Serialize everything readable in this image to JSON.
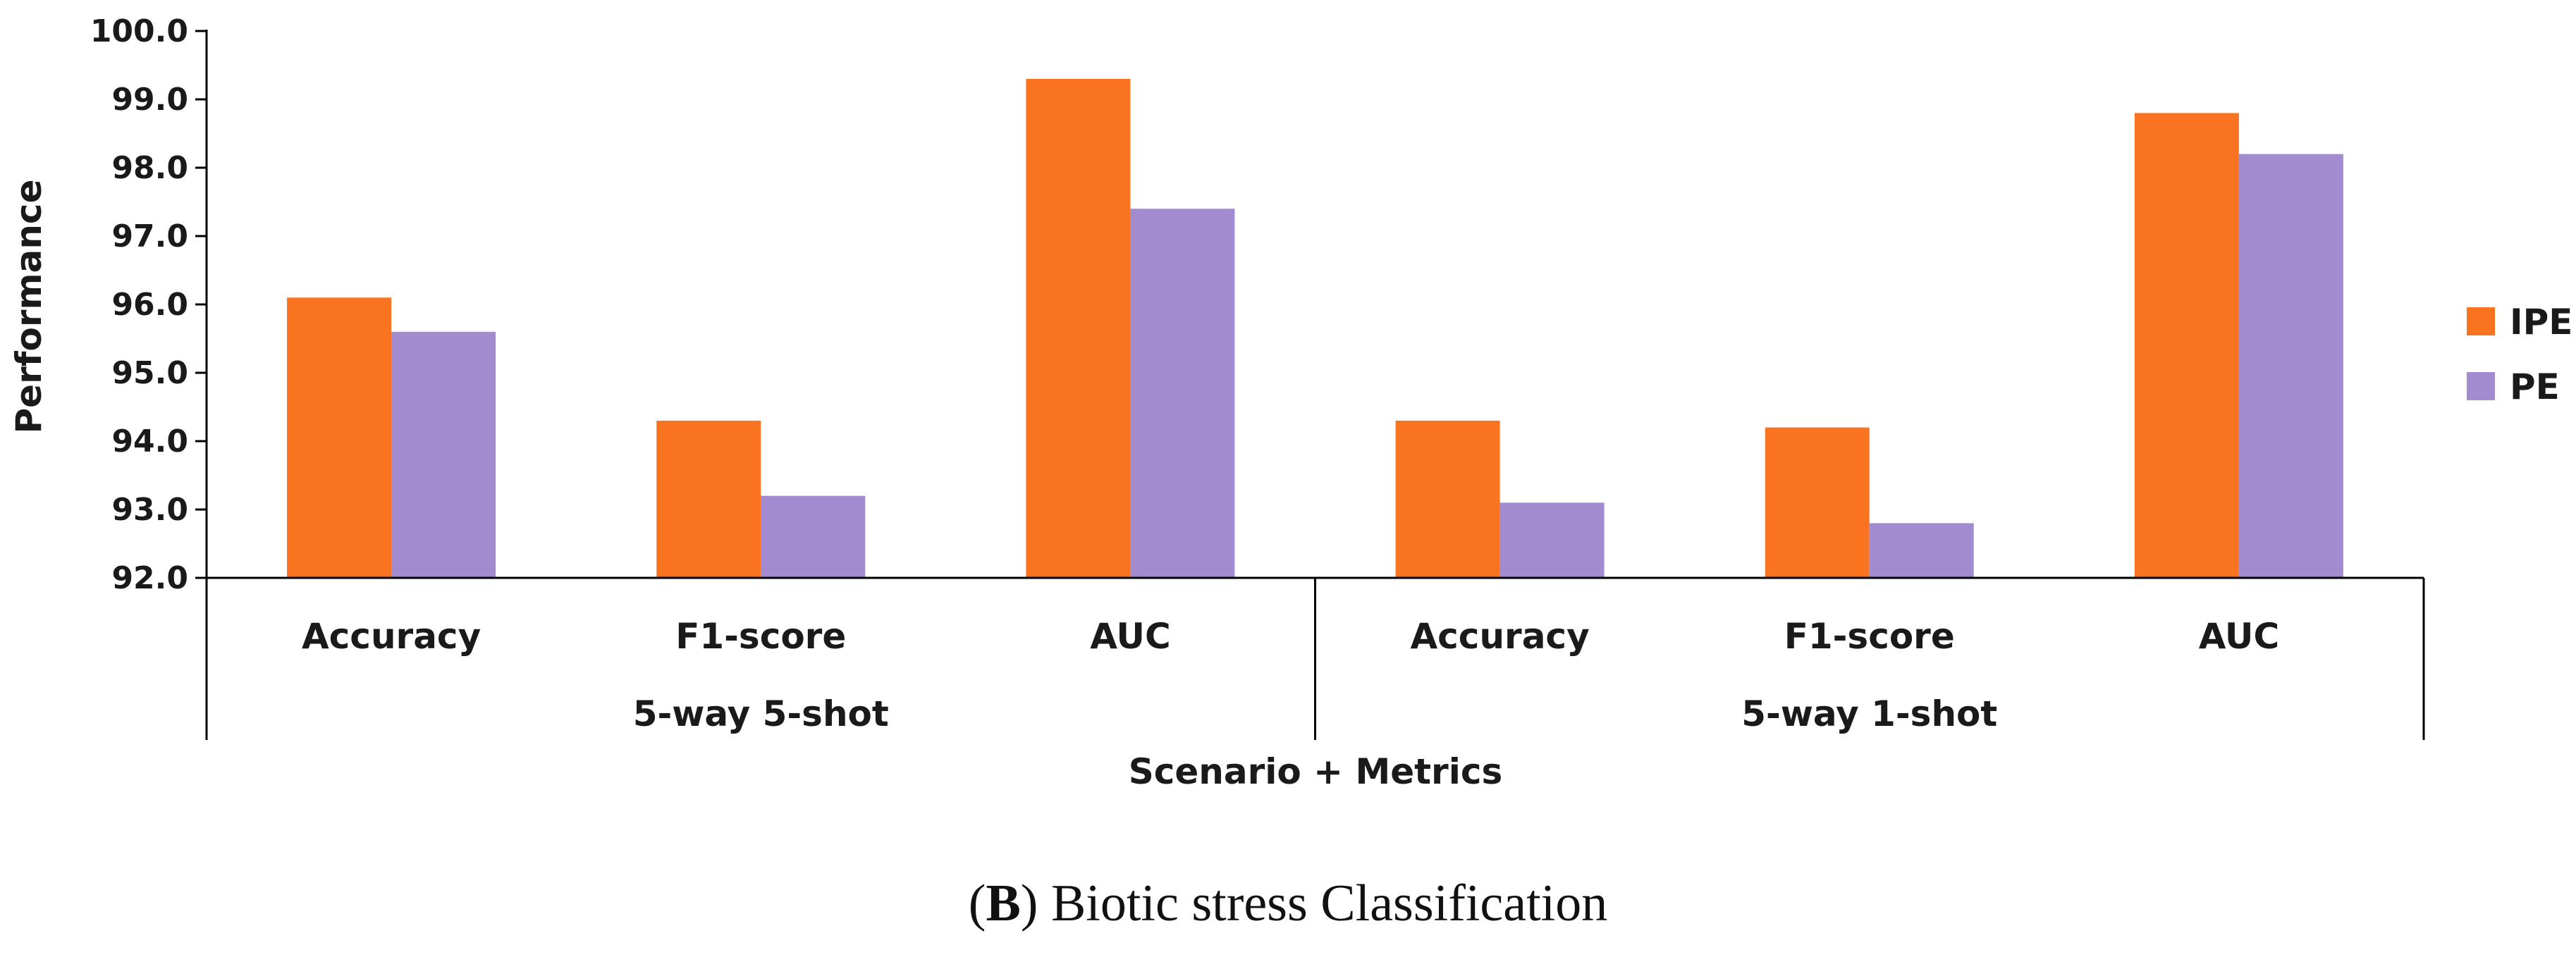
{
  "chart_data": {
    "type": "bar",
    "ylabel": "Performance",
    "xlabel": "Scenario + Metrics",
    "ylim": [
      92.0,
      100.0
    ],
    "yticks": [
      "92.0",
      "93.0",
      "94.0",
      "95.0",
      "96.0",
      "97.0",
      "98.0",
      "99.0",
      "100.0"
    ],
    "groups": [
      "5-way 5-shot",
      "5-way 1-shot"
    ],
    "categories": [
      "Accuracy",
      "F1-score",
      "AUC",
      "Accuracy",
      "F1-score",
      "AUC"
    ],
    "series": [
      {
        "name": "IPE",
        "color": "#f97320",
        "values": [
          96.1,
          94.3,
          99.3,
          94.3,
          94.2,
          98.8
        ]
      },
      {
        "name": "PE",
        "color": "#a28ccf",
        "values": [
          95.6,
          93.2,
          97.4,
          93.1,
          92.8,
          98.2
        ]
      }
    ],
    "legend_position": "right"
  },
  "caption": {
    "open": "(",
    "label": "B",
    "close": ")",
    "text": " Biotic stress Classification"
  }
}
